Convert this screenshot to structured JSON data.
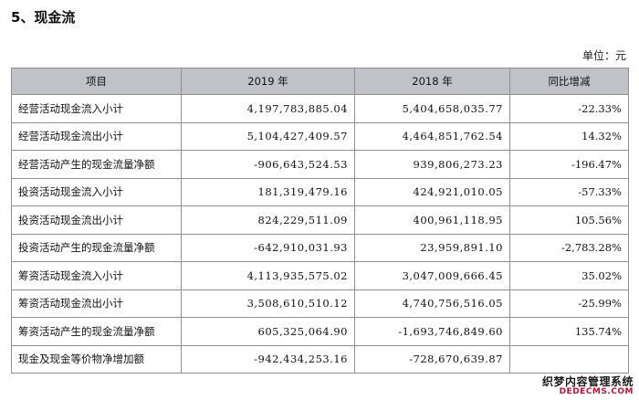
{
  "section_title": "5、现金流",
  "unit": "单位：元",
  "table": {
    "headers": [
      "项目",
      "2019 年",
      "2018 年",
      "同比增减"
    ],
    "rows": [
      [
        "经营活动现金流入小计",
        "4,197,783,885.04",
        "5,404,658,035.77",
        "-22.33%"
      ],
      [
        "经营活动现金流出小计",
        "5,104,427,409.57",
        "4,464,851,762.54",
        "14.32%"
      ],
      [
        "经营活动产生的现金流量净额",
        "-906,643,524.53",
        "939,806,273.23",
        "-196.47%"
      ],
      [
        "投资活动现金流入小计",
        "181,319,479.16",
        "424,921,010.05",
        "-57.33%"
      ],
      [
        "投资活动现金流出小计",
        "824,229,511.09",
        "400,961,118.95",
        "105.56%"
      ],
      [
        "投资活动产生的现金流量净额",
        "-642,910,031.93",
        "23,959,891.10",
        "-2,783.28%"
      ],
      [
        "筹资活动现金流入小计",
        "4,113,935,575.02",
        "3,047,009,666.45",
        "35.02%"
      ],
      [
        "筹资活动现金流出小计",
        "3,508,610,510.12",
        "4,740,756,516.05",
        "-25.99%"
      ],
      [
        "筹资活动产生的现金流量净额",
        "605,325,064.90",
        "-1,693,746,849.60",
        "135.74%"
      ],
      [
        "现金及现金等价物净增加额",
        "-942,434,253.16",
        "-728,670,639.87",
        ""
      ]
    ]
  },
  "watermark": {
    "line1": "织梦内容管理系统",
    "line2": "DEDECMS.COM"
  }
}
